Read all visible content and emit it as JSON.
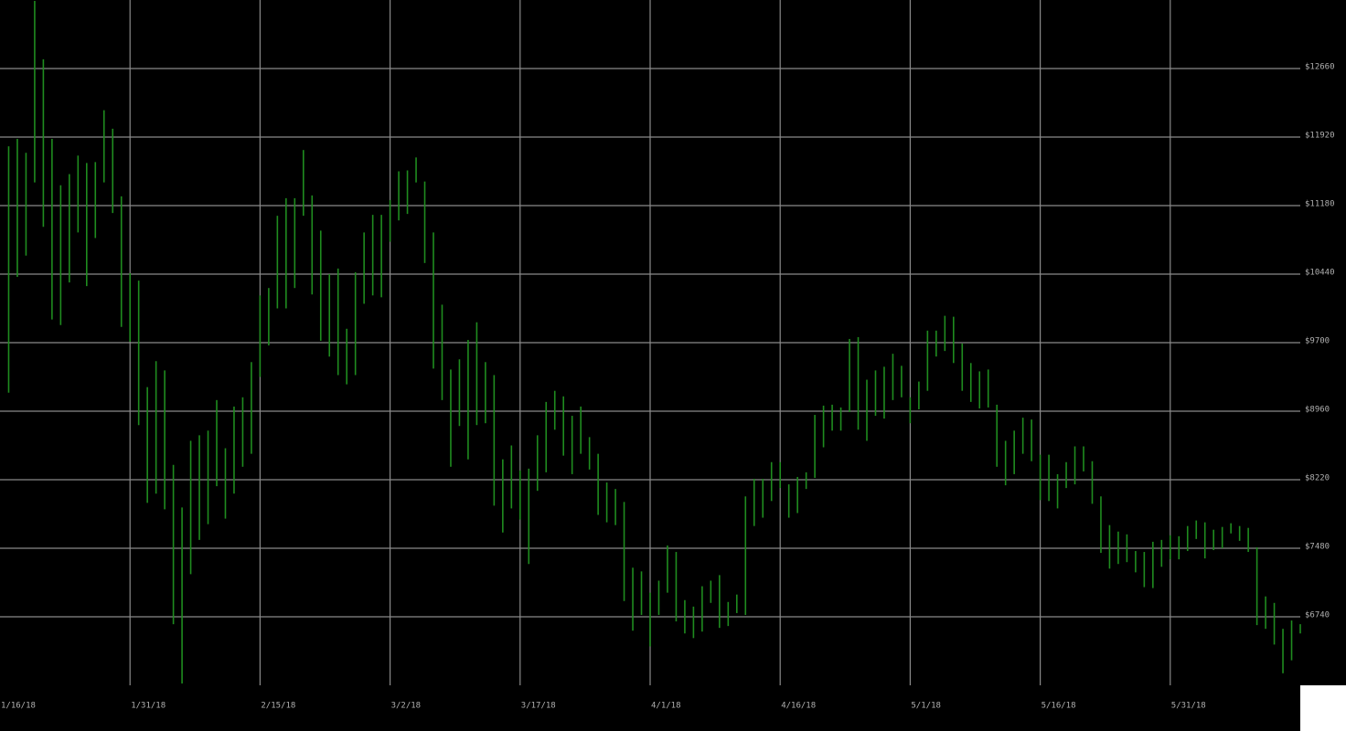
{
  "chart_data": {
    "type": "range",
    "color": "#1f8c1f",
    "grid": true,
    "ylim": [
      6000,
      13400
    ],
    "yticks": [
      {
        "value": 6740,
        "label": "$6740"
      },
      {
        "value": 7480,
        "label": "$7480"
      },
      {
        "value": 8220,
        "label": "$8220"
      },
      {
        "value": 8960,
        "label": "$8960"
      },
      {
        "value": 9700,
        "label": "$9700"
      },
      {
        "value": 10440,
        "label": "$10440"
      },
      {
        "value": 11180,
        "label": "$11180"
      },
      {
        "value": 11920,
        "label": "$11920"
      },
      {
        "value": 12660,
        "label": "$12660"
      }
    ],
    "xlim": [
      "2018-01-16",
      "2018-06-15"
    ],
    "xticks": [
      {
        "value": "2018-01-16",
        "label": "1/16/18"
      },
      {
        "value": "2018-01-31",
        "label": "1/31/18"
      },
      {
        "value": "2018-02-15",
        "label": "2/15/18"
      },
      {
        "value": "2018-03-02",
        "label": "3/2/18"
      },
      {
        "value": "2018-03-17",
        "label": "3/17/18"
      },
      {
        "value": "2018-04-01",
        "label": "4/1/18"
      },
      {
        "value": "2018-04-16",
        "label": "4/16/18"
      },
      {
        "value": "2018-05-01",
        "label": "5/1/18"
      },
      {
        "value": "2018-05-16",
        "label": "5/16/18"
      },
      {
        "value": "2018-05-31",
        "label": "5/31/18"
      }
    ],
    "x": [
      "2018-01-17",
      "2018-01-18",
      "2018-01-19",
      "2018-01-20",
      "2018-01-21",
      "2018-01-22",
      "2018-01-23",
      "2018-01-24",
      "2018-01-25",
      "2018-01-26",
      "2018-01-27",
      "2018-01-28",
      "2018-01-29",
      "2018-01-30",
      "2018-01-31",
      "2018-02-01",
      "2018-02-02",
      "2018-02-03",
      "2018-02-04",
      "2018-02-05",
      "2018-02-06",
      "2018-02-07",
      "2018-02-08",
      "2018-02-09",
      "2018-02-10",
      "2018-02-11",
      "2018-02-12",
      "2018-02-13",
      "2018-02-14",
      "2018-02-15",
      "2018-02-16",
      "2018-02-17",
      "2018-02-18",
      "2018-02-19",
      "2018-02-20",
      "2018-02-21",
      "2018-02-22",
      "2018-02-23",
      "2018-02-24",
      "2018-02-25",
      "2018-02-26",
      "2018-02-27",
      "2018-02-28",
      "2018-03-01",
      "2018-03-02",
      "2018-03-03",
      "2018-03-04",
      "2018-03-05",
      "2018-03-06",
      "2018-03-07",
      "2018-03-08",
      "2018-03-09",
      "2018-03-10",
      "2018-03-11",
      "2018-03-12",
      "2018-03-13",
      "2018-03-14",
      "2018-03-15",
      "2018-03-16",
      "2018-03-17",
      "2018-03-18",
      "2018-03-19",
      "2018-03-20",
      "2018-03-21",
      "2018-03-22",
      "2018-03-23",
      "2018-03-24",
      "2018-03-25",
      "2018-03-26",
      "2018-03-27",
      "2018-03-28",
      "2018-03-29",
      "2018-03-30",
      "2018-03-31",
      "2018-04-01",
      "2018-04-02",
      "2018-04-03",
      "2018-04-04",
      "2018-04-05",
      "2018-04-06",
      "2018-04-07",
      "2018-04-08",
      "2018-04-09",
      "2018-04-10",
      "2018-04-11",
      "2018-04-12",
      "2018-04-13",
      "2018-04-14",
      "2018-04-15",
      "2018-04-16",
      "2018-04-17",
      "2018-04-18",
      "2018-04-19",
      "2018-04-20",
      "2018-04-21",
      "2018-04-22",
      "2018-04-23",
      "2018-04-24",
      "2018-04-25",
      "2018-04-26",
      "2018-04-27",
      "2018-04-28",
      "2018-04-29",
      "2018-04-30",
      "2018-05-01",
      "2018-05-02",
      "2018-05-03",
      "2018-05-04",
      "2018-05-05",
      "2018-05-06",
      "2018-05-07",
      "2018-05-08",
      "2018-05-09",
      "2018-05-10",
      "2018-05-11",
      "2018-05-12",
      "2018-05-13",
      "2018-05-14",
      "2018-05-15",
      "2018-05-16",
      "2018-05-17",
      "2018-05-18",
      "2018-05-19",
      "2018-05-20",
      "2018-05-21",
      "2018-05-22",
      "2018-05-23",
      "2018-05-24",
      "2018-05-25",
      "2018-05-26",
      "2018-05-27",
      "2018-05-28",
      "2018-05-29",
      "2018-05-30",
      "2018-05-31",
      "2018-06-01",
      "2018-06-02",
      "2018-06-03",
      "2018-06-04",
      "2018-06-05",
      "2018-06-06",
      "2018-06-07",
      "2018-06-08",
      "2018-06-09",
      "2018-06-10",
      "2018-06-11",
      "2018-06-12",
      "2018-06-13",
      "2018-06-14",
      "2018-06-15"
    ],
    "high": [
      11820,
      11900,
      11750,
      13390,
      12760,
      11900,
      11400,
      11520,
      11720,
      11640,
      11650,
      12210,
      12010,
      11280,
      10450,
      10370,
      9220,
      9500,
      9400,
      8380,
      7920,
      8640,
      8700,
      8750,
      9080,
      8560,
      9010,
      9110,
      9490,
      10210,
      10290,
      11070,
      11260,
      11260,
      11780,
      11290,
      10910,
      10440,
      10500,
      9850,
      10460,
      10890,
      11080,
      11080,
      11240,
      11550,
      11560,
      11700,
      11440,
      10890,
      10110,
      9410,
      9520,
      9730,
      9920,
      9490,
      9350,
      8440,
      8590,
      8320,
      8340,
      8700,
      9060,
      9180,
      9120,
      8910,
      9010,
      8680,
      8500,
      8190,
      8120,
      7980,
      7270,
      7230,
      7000,
      7130,
      7510,
      7440,
      6920,
      6850,
      7070,
      7130,
      7190,
      6900,
      6980,
      8040,
      8230,
      8230,
      8410,
      8410,
      8170,
      8250,
      8300,
      8920,
      9020,
      9030,
      9000,
      9740,
      9760,
      9300,
      9400,
      9440,
      9580,
      9450,
      9110,
      9280,
      9830,
      9830,
      9990,
      9980,
      9690,
      9480,
      9390,
      9410,
      9030,
      8640,
      8750,
      8890,
      8870,
      8490,
      8490,
      8280,
      8410,
      8580,
      8580,
      8420,
      8040,
      7730,
      7660,
      7630,
      7450,
      7440,
      7550,
      7570,
      7620,
      7610,
      7720,
      7780,
      7760,
      7680,
      7710,
      7750,
      7720,
      7700,
      7490,
      6960,
      6890,
      6610,
      6700,
      6660
    ],
    "low": [
      9160,
      10410,
      10640,
      11430,
      10950,
      9950,
      9890,
      10350,
      10890,
      10310,
      10830,
      11430,
      11100,
      9870,
      9710,
      8810,
      7970,
      8070,
      7900,
      6660,
      6020,
      7200,
      7570,
      7740,
      8150,
      7800,
      8070,
      8360,
      8500,
      9330,
      9670,
      10070,
      10070,
      10290,
      11070,
      10220,
      9720,
      9550,
      9350,
      9250,
      9350,
      10120,
      10210,
      10190,
      10790,
      11020,
      11090,
      11430,
      10560,
      9420,
      9080,
      8360,
      8800,
      8440,
      8810,
      8830,
      7940,
      7650,
      7910,
      7790,
      7310,
      8100,
      8300,
      8760,
      8480,
      8280,
      8500,
      8330,
      7840,
      7760,
      7730,
      6910,
      6590,
      6760,
      6420,
      6760,
      7000,
      6690,
      6560,
      6510,
      6580,
      6890,
      6620,
      6640,
      6780,
      6760,
      7720,
      7810,
      7990,
      8130,
      7810,
      7860,
      8120,
      8240,
      8570,
      8750,
      8750,
      8950,
      8760,
      8640,
      8910,
      8880,
      9080,
      9110,
      8830,
      8980,
      9180,
      9550,
      9610,
      9480,
      9180,
      9060,
      8990,
      9000,
      8360,
      8160,
      8280,
      8500,
      8420,
      8000,
      7990,
      7910,
      8130,
      8170,
      8310,
      7960,
      7430,
      7260,
      7310,
      7330,
      7220,
      7060,
      7050,
      7280,
      7360,
      7360,
      7450,
      7580,
      7370,
      7460,
      7480,
      7640,
      7560,
      7440,
      6650,
      6610,
      6440,
      6130,
      6270,
      6560
    ]
  }
}
